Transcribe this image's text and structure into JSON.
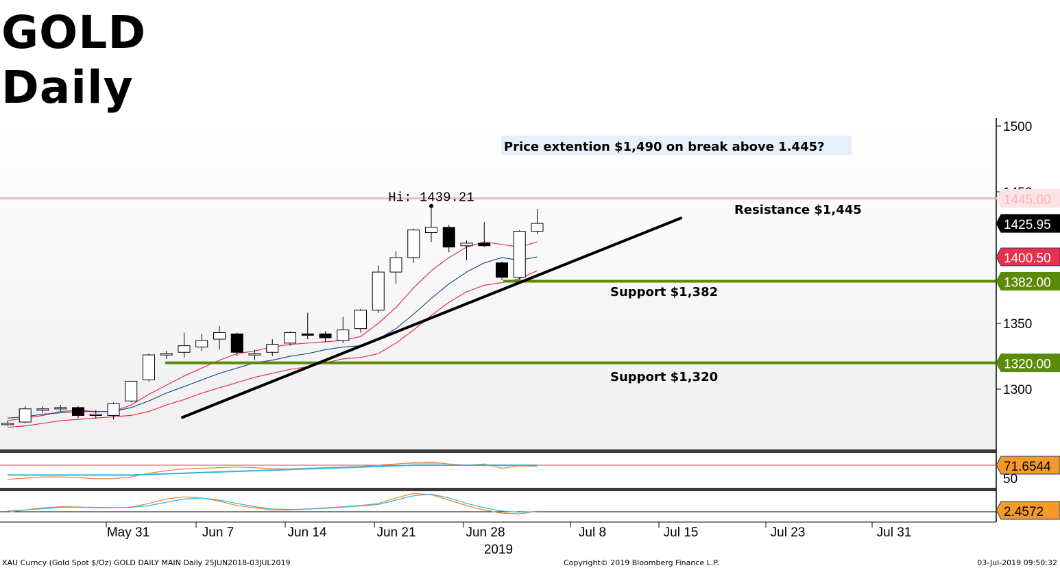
{
  "title": {
    "line1": "GOLD",
    "line2": "Daily"
  },
  "footer": {
    "left": "XAU Curncy (Gold Spot   $/Oz) GOLD DAILY MAIN  Daily 25JUN2018-03JUL2019",
    "center": "Copyright© 2019 Bloomberg Finance L.P.",
    "right": "03-Jul-2019 09:50:32"
  },
  "colors": {
    "up": "#ffffff",
    "down": "#000000",
    "ma_fast": "#e03050",
    "ma_slow": "#1f4e8c",
    "support": "#5a8a0a",
    "resistance": "#f4b8c0",
    "trend": "#000000",
    "rsi": "#f0802a",
    "rsi_ma": "#2cb5e0",
    "stoch_k": "#f0802a",
    "stoch_d": "#2cb5e0"
  },
  "chart_data": [
    {
      "type": "candlestick",
      "title": "GOLD Daily",
      "ylim": [
        1250,
        1505
      ],
      "yticks": [
        1300,
        1350,
        1450,
        1500
      ],
      "x_ticks": [
        "May 31",
        "Jun 7",
        "Jun 14",
        "Jun 21",
        "Jun 28",
        "Jul 8",
        "Jul 15",
        "Jul 23",
        "Jul 31"
      ],
      "x_year_label": "2019",
      "candles": [
        {
          "date": "May 22",
          "open": 1273,
          "high": 1276,
          "low": 1272,
          "close": 1274
        },
        {
          "date": "May 23",
          "open": 1275,
          "high": 1287,
          "low": 1274,
          "close": 1285
        },
        {
          "date": "May 24",
          "open": 1284,
          "high": 1287,
          "low": 1282,
          "close": 1285
        },
        {
          "date": "May 27",
          "open": 1285,
          "high": 1288,
          "low": 1283,
          "close": 1286
        },
        {
          "date": "May 28",
          "open": 1286,
          "high": 1287,
          "low": 1278,
          "close": 1280
        },
        {
          "date": "May 29",
          "open": 1280,
          "high": 1284,
          "low": 1278,
          "close": 1281
        },
        {
          "date": "May 30",
          "open": 1280,
          "high": 1290,
          "low": 1277,
          "close": 1289
        },
        {
          "date": "May 31",
          "open": 1291,
          "high": 1306,
          "low": 1290,
          "close": 1306
        },
        {
          "date": "Jun 3",
          "open": 1307,
          "high": 1327,
          "low": 1306,
          "close": 1326
        },
        {
          "date": "Jun 4",
          "open": 1326,
          "high": 1329,
          "low": 1323,
          "close": 1327
        },
        {
          "date": "Jun 5",
          "open": 1328,
          "high": 1343,
          "low": 1324,
          "close": 1333
        },
        {
          "date": "Jun 6",
          "open": 1332,
          "high": 1342,
          "low": 1329,
          "close": 1337
        },
        {
          "date": "Jun 7",
          "open": 1338,
          "high": 1348,
          "low": 1330,
          "close": 1343
        },
        {
          "date": "Jun 10",
          "open": 1342,
          "high": 1343,
          "low": 1325,
          "close": 1328
        },
        {
          "date": "Jun 11",
          "open": 1327,
          "high": 1330,
          "low": 1322,
          "close": 1327
        },
        {
          "date": "Jun 12",
          "open": 1328,
          "high": 1338,
          "low": 1325,
          "close": 1334
        },
        {
          "date": "Jun 13",
          "open": 1335,
          "high": 1344,
          "low": 1333,
          "close": 1343
        },
        {
          "date": "Jun 14",
          "open": 1342,
          "high": 1358,
          "low": 1338,
          "close": 1341
        },
        {
          "date": "Jun 17",
          "open": 1342,
          "high": 1344,
          "low": 1336,
          "close": 1339
        },
        {
          "date": "Jun 18",
          "open": 1337,
          "high": 1355,
          "low": 1335,
          "close": 1345
        },
        {
          "date": "Jun 19",
          "open": 1346,
          "high": 1361,
          "low": 1343,
          "close": 1360
        },
        {
          "date": "Jun 20",
          "open": 1360,
          "high": 1394,
          "low": 1358,
          "close": 1389
        },
        {
          "date": "Jun 21",
          "open": 1389,
          "high": 1405,
          "low": 1380,
          "close": 1400
        },
        {
          "date": "Jun 24",
          "open": 1400,
          "high": 1422,
          "low": 1396,
          "close": 1421
        },
        {
          "date": "Jun 25",
          "open": 1419,
          "high": 1439.21,
          "low": 1412,
          "close": 1423
        },
        {
          "date": "Jun 26",
          "open": 1423,
          "high": 1425,
          "low": 1404,
          "close": 1408
        },
        {
          "date": "Jun 27",
          "open": 1409,
          "high": 1413,
          "low": 1398,
          "close": 1411
        },
        {
          "date": "Jun 28",
          "open": 1411,
          "high": 1427,
          "low": 1408,
          "close": 1409
        },
        {
          "date": "Jul 1",
          "open": 1396,
          "high": 1397,
          "low": 1383,
          "close": 1385
        },
        {
          "date": "Jul 2",
          "open": 1385,
          "high": 1421,
          "low": 1382,
          "close": 1420
        },
        {
          "date": "Jul 3",
          "open": 1420,
          "high": 1437,
          "low": 1418,
          "close": 1426
        }
      ],
      "series": [
        {
          "values": [
            1276,
            1278,
            1280,
            1283,
            1284,
            1283,
            1283,
            1288,
            1296,
            1303,
            1310,
            1316,
            1322,
            1327,
            1329,
            1332,
            1334,
            1335,
            1336,
            1337,
            1340,
            1350,
            1362,
            1377,
            1390,
            1400,
            1408,
            1412,
            1410,
            1408,
            1412
          ]
        },
        {
          "values": [
            1278,
            1279,
            1281,
            1282,
            1283,
            1283,
            1283,
            1286,
            1291,
            1297,
            1302,
            1307,
            1312,
            1316,
            1320,
            1322,
            1325,
            1327,
            1330,
            1332,
            1333,
            1338,
            1346,
            1357,
            1369,
            1380,
            1389,
            1396,
            1400,
            1398,
            1400.5
          ]
        },
        {
          "values": [
            1271,
            1272,
            1274,
            1276,
            1277,
            1278,
            1279,
            1280,
            1283,
            1288,
            1292,
            1297,
            1301,
            1305,
            1309,
            1312,
            1315,
            1317,
            1320,
            1323,
            1324,
            1327,
            1335,
            1345,
            1356,
            1366,
            1374,
            1379,
            1381,
            1384,
            1390
          ]
        }
      ],
      "levels": [
        {
          "label": "Resistance $1,445",
          "value": 1445,
          "tag": "1445.00"
        },
        {
          "label": "Support $1,382",
          "value": 1382,
          "tag": "1382.00"
        },
        {
          "label": "Support  $1,320",
          "value": 1320,
          "tag": "1320.00"
        }
      ],
      "price_tags": [
        {
          "value": 1425.95,
          "text": "1425.95"
        },
        {
          "value": 1400.5,
          "text": "1400.50"
        }
      ],
      "trendline": {
        "from": {
          "date": "May 28",
          "value": 1278
        },
        "to": {
          "date": "Jul 15",
          "value": 1430
        }
      },
      "annotations": [
        {
          "text": "Hi: 1439.21",
          "value": 1439.21,
          "date": "Jun 25"
        },
        {
          "text": "Price extention $1,490 on break above 1.445?"
        }
      ]
    },
    {
      "type": "line",
      "title": "RSI",
      "yticks": [
        50
      ],
      "last_value": "71.6544",
      "series": [
        {
          "values": [
            45,
            47,
            49,
            49,
            48,
            46,
            46,
            49,
            55,
            59,
            62,
            63,
            64,
            65,
            64,
            62,
            62,
            63,
            64,
            65,
            66,
            68,
            70,
            72,
            73,
            70,
            68,
            70,
            63,
            67,
            66
          ]
        },
        {
          "values": [
            52,
            52,
            52,
            52,
            52,
            52,
            52,
            52,
            53,
            54,
            55,
            56,
            57,
            58,
            59,
            60,
            61,
            62,
            63,
            64,
            65,
            66,
            67,
            68,
            68,
            68,
            68,
            68,
            68,
            68,
            68
          ]
        }
      ]
    },
    {
      "type": "line",
      "title": "Stochastic",
      "last_value": "2.4572",
      "series": [
        {
          "values": [
            2,
            3,
            4,
            4.5,
            4.4,
            4,
            4,
            4.3,
            6,
            8,
            9,
            8.5,
            7,
            5,
            4,
            3,
            3,
            3.5,
            4,
            4.5,
            5,
            6,
            8.5,
            10.5,
            10,
            7.5,
            5,
            3,
            1.5,
            1.2,
            2.5
          ]
        },
        {
          "values": [
            2.5,
            3,
            3.6,
            4.2,
            4.3,
            4.2,
            4.1,
            4.2,
            5,
            6.5,
            8,
            8.5,
            7.5,
            6,
            4.5,
            3.5,
            3.2,
            3.4,
            3.8,
            4.3,
            4.8,
            5.5,
            7.5,
            9.5,
            10.2,
            8.5,
            6,
            4,
            2.5,
            2,
            2.3
          ]
        }
      ]
    }
  ]
}
